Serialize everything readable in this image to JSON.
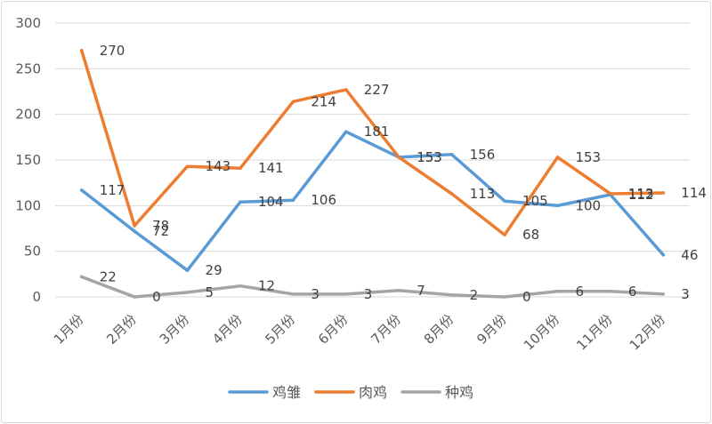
{
  "chart_data": {
    "type": "line",
    "categories": [
      "1月份",
      "2月份",
      "3月份",
      "4月份",
      "5月份",
      "6月份",
      "7月份",
      "8月份",
      "9月份",
      "10月份",
      "11月份",
      "12月份"
    ],
    "yticks": [
      0,
      50,
      100,
      150,
      200,
      250,
      300
    ],
    "ylim": [
      0,
      300
    ],
    "grid": true,
    "data_labels": true,
    "legend_position": "bottom",
    "series": [
      {
        "name": "鸡雏",
        "color": "#5B9BD5",
        "values": [
          117,
          72,
          29,
          104,
          106,
          181,
          153,
          156,
          105,
          100,
          112,
          46
        ]
      },
      {
        "name": "肉鸡",
        "color": "#ED7D31",
        "values": [
          270,
          78,
          143,
          141,
          214,
          227,
          153,
          113,
          68,
          153,
          113,
          114
        ]
      },
      {
        "name": "种鸡",
        "color": "#A5A5A5",
        "values": [
          22,
          0,
          5,
          12,
          3,
          3,
          7,
          2,
          0,
          6,
          6,
          3
        ]
      }
    ]
  }
}
